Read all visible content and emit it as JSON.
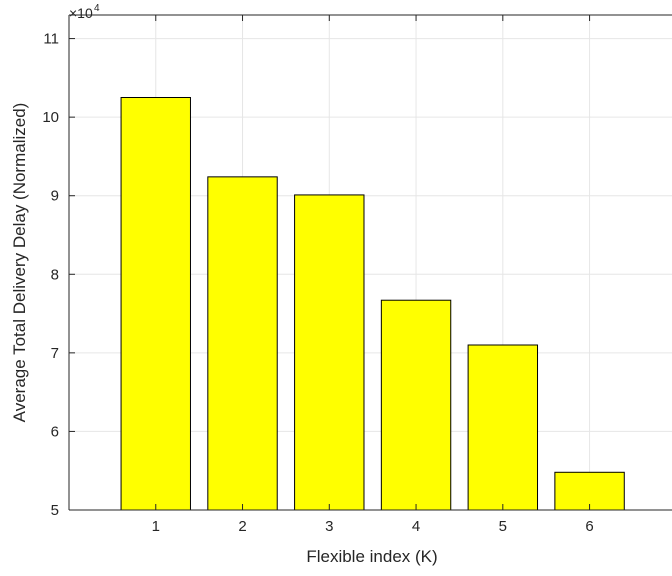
{
  "chart_data": {
    "type": "bar",
    "categories": [
      "1",
      "2",
      "3",
      "4",
      "5",
      "6"
    ],
    "values": [
      102500,
      92400,
      90100,
      76700,
      71000,
      54800
    ],
    "xlabel": "Flexible index (K)",
    "ylabel": "Average Total Delivery Delay (Normalized)",
    "ylim": [
      50000,
      113000
    ],
    "yticks": [
      50000,
      60000,
      70000,
      80000,
      90000,
      100000,
      110000
    ],
    "ytick_labels": [
      "5",
      "6",
      "7",
      "8",
      "9",
      "10",
      "11"
    ],
    "y_exponent_base": "×10",
    "y_exponent_power": "4",
    "xlim": [
      0,
      6.95
    ],
    "bar_color": "#FFFF00",
    "bar_edge_color": "#000000",
    "grid": true,
    "grid_color": "#E6E6E6",
    "axis_color": "#262626"
  }
}
